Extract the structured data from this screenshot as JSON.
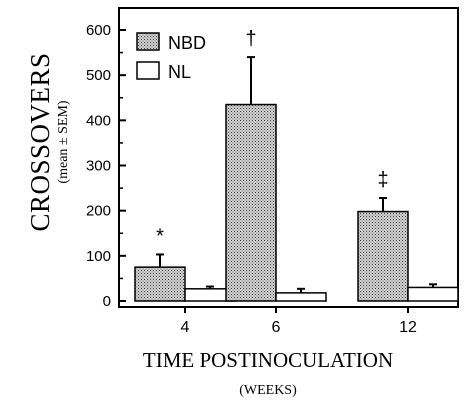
{
  "chart_data": {
    "type": "bar",
    "categories": [
      "4",
      "6",
      "12"
    ],
    "series": [
      {
        "name": "NBD",
        "values": [
          75,
          435,
          198
        ],
        "errors": [
          28,
          105,
          30
        ],
        "pattern": "stipple"
      },
      {
        "name": "NL",
        "values": [
          27,
          18,
          30
        ],
        "errors": [
          5,
          9,
          7
        ],
        "pattern": "open"
      }
    ],
    "significance": [
      "*",
      "†",
      "‡"
    ],
    "ylabel": "CROSSOVERS",
    "ylabel_sub": "(mean ± SEM)",
    "xlabel": "TIME POSTINOCULATION",
    "xlabel_sub": "(WEEKS)",
    "ylim": [
      0,
      650
    ],
    "yticks": [
      "0",
      "100",
      "200",
      "300",
      "400",
      "500",
      "600"
    ],
    "legend_position": "top-left"
  }
}
